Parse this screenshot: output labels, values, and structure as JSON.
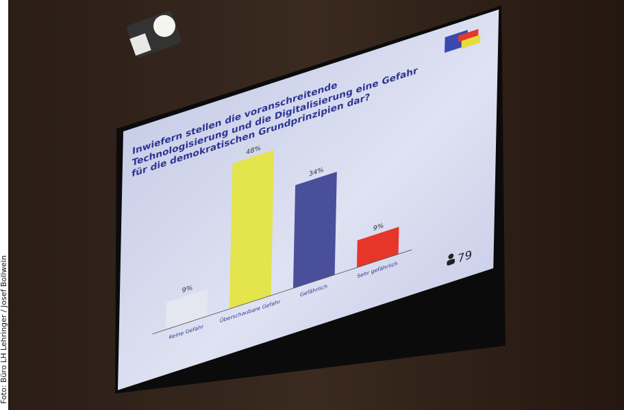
{
  "photo_credit": "Foto: Büro LH Lehringer / Josef Bollwein",
  "chart_data": {
    "type": "bar",
    "title": "Inwiefern stellen die voranschreitende Technologisierung und die Digitalisierung eine Gefahr für die demokratischen Grundprinzipien dar?",
    "categories": [
      "Keine Gefahr",
      "Überschaubare Gefahr",
      "Gefährlich",
      "Sehr gefährlich"
    ],
    "values": [
      9,
      48,
      34,
      9
    ],
    "value_labels": [
      "9%",
      "48%",
      "34%",
      "9%"
    ],
    "colors": [
      "#e4e6f0",
      "#e4e44c",
      "#4a4f9c",
      "#e8352a"
    ],
    "participants": "79"
  }
}
